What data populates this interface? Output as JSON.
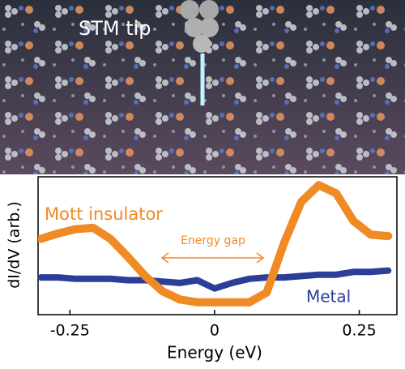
{
  "image": {
    "label": "STM tip"
  },
  "chart_data": {
    "type": "line",
    "xlabel": "Energy (eV)",
    "ylabel": "dI/dV (arb.)",
    "x": [
      -0.3,
      -0.27,
      -0.24,
      -0.21,
      -0.18,
      -0.15,
      -0.12,
      -0.09,
      -0.06,
      -0.03,
      0,
      0.03,
      0.06,
      0.09,
      0.12,
      0.15,
      0.18,
      0.21,
      0.24,
      0.27,
      0.3
    ],
    "series": [
      {
        "name": "Mott insulator",
        "color": "#f08a24",
        "values": [
          0.55,
          0.59,
          0.62,
          0.63,
          0.55,
          0.42,
          0.28,
          0.17,
          0.11,
          0.09,
          0.09,
          0.09,
          0.09,
          0.16,
          0.52,
          0.82,
          0.94,
          0.88,
          0.68,
          0.58,
          0.57
        ]
      },
      {
        "name": "Metal",
        "color": "#2c3e9a",
        "values": [
          0.27,
          0.27,
          0.26,
          0.26,
          0.26,
          0.25,
          0.25,
          0.24,
          0.23,
          0.25,
          0.19,
          0.23,
          0.26,
          0.27,
          0.27,
          0.28,
          0.29,
          0.29,
          0.31,
          0.31,
          0.32
        ]
      }
    ],
    "annotation": "Energy gap",
    "xlim": [
      -0.305,
      0.315
    ],
    "xticks": [
      -0.25,
      0,
      0.25
    ],
    "ylim": [
      0,
      1
    ]
  }
}
